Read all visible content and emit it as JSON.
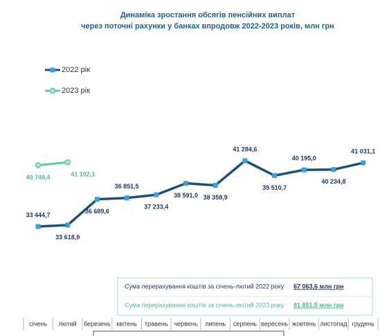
{
  "chart_data": {
    "type": "line",
    "title": [
      "Динаміка зростання обсягів пенсійних виплат",
      "через поточні рахунки у банках впродовж 2022-2023 років, млн грн"
    ],
    "categories": [
      "січень",
      "лютий",
      "березень",
      "квітень",
      "травень",
      "червень",
      "липень",
      "серпень",
      "вересень",
      "жовтень",
      "листопад",
      "грудень"
    ],
    "series": [
      {
        "name": "2022 рік",
        "color": "#1f4e79",
        "marker": "square",
        "values": [
          33444.7,
          33618.9,
          36689.6,
          36851.5,
          37233.4,
          38591.0,
          38358.9,
          41284.6,
          39510.7,
          40195.0,
          40234.8,
          41031.1
        ],
        "value_labels": [
          "33 444,7",
          "33 618,9",
          "36 689,6",
          "36 851,5",
          "37 233,4",
          "38 591,0",
          "38 358,9",
          "41 284,6",
          "39 510,7",
          "40 195,0",
          "40 234,8",
          "41 031,1"
        ]
      },
      {
        "name": "2023 рік",
        "color": "#5ccf97",
        "marker": "circle",
        "values": [
          40749.4,
          41102.1,
          null,
          null,
          null,
          null,
          null,
          null,
          null,
          null,
          null,
          null
        ],
        "value_labels": [
          "40 749,4",
          "41 102,1",
          null,
          null,
          null,
          null,
          null,
          null,
          null,
          null,
          null,
          null
        ]
      }
    ],
    "legend": "top-left",
    "annotations": [
      {
        "text": "Сума перерахування коштів  за січень-лютий 2022 року",
        "value_label": "67 063,6 млн грн",
        "color": "#1f3864"
      },
      {
        "text": "Сума перерахування коштів  за січень-лютий 2023 року",
        "value_label": "81 851,5 млн грн",
        "color": "#4cbb85"
      }
    ]
  }
}
